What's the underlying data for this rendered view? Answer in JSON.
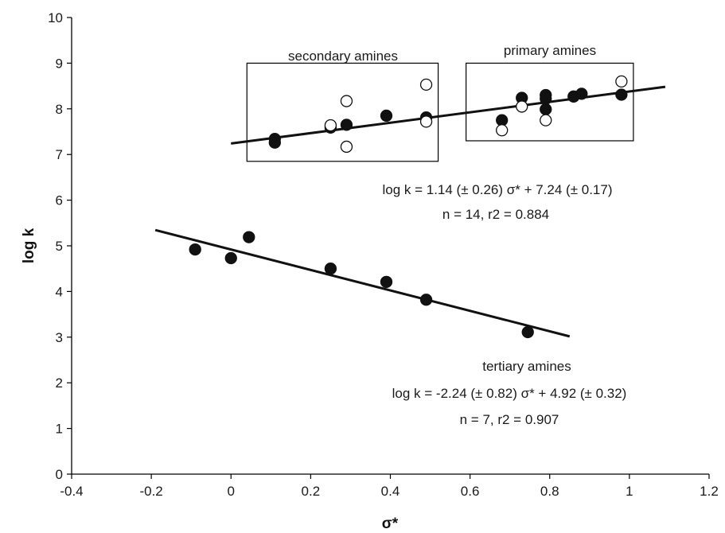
{
  "chart_data": {
    "type": "scatter",
    "xlabel": "σ*",
    "ylabel": "log k",
    "xlim": [
      -0.4,
      1.2
    ],
    "ylim": [
      0,
      10
    ],
    "xticks": [
      -0.4,
      -0.2,
      0,
      0.2,
      0.4,
      0.6,
      0.8,
      1,
      1.2
    ],
    "xtick_labels": [
      "-0.4",
      "-0.2",
      "0",
      "0.2",
      "0.4",
      "0.6",
      "0.8",
      "1",
      "1.2"
    ],
    "yticks": [
      0,
      1,
      2,
      3,
      4,
      5,
      6,
      7,
      8,
      9,
      10
    ],
    "ytick_labels": [
      "0",
      "1",
      "2",
      "3",
      "4",
      "5",
      "6",
      "7",
      "8",
      "9",
      "10"
    ],
    "grid": false,
    "series": [
      {
        "marker": "filled-circle",
        "color": "#111111",
        "points": [
          {
            "x": 0.11,
            "y": 7.34
          },
          {
            "x": 0.11,
            "y": 7.26
          },
          {
            "x": 0.25,
            "y": 7.59
          },
          {
            "x": 0.29,
            "y": 7.65
          },
          {
            "x": 0.39,
            "y": 7.85
          },
          {
            "x": 0.49,
            "y": 7.81
          },
          {
            "x": 0.73,
            "y": 8.24
          },
          {
            "x": 0.68,
            "y": 7.75
          },
          {
            "x": 0.79,
            "y": 8.3
          },
          {
            "x": 0.79,
            "y": 8.22
          },
          {
            "x": 0.79,
            "y": 7.99
          },
          {
            "x": 0.86,
            "y": 8.27
          },
          {
            "x": 0.88,
            "y": 8.33
          },
          {
            "x": 0.98,
            "y": 8.31
          }
        ]
      },
      {
        "marker": "open-circle",
        "color": "#111111",
        "points": [
          {
            "x": 0.25,
            "y": 7.64
          },
          {
            "x": 0.29,
            "y": 8.17
          },
          {
            "x": 0.29,
            "y": 7.17
          },
          {
            "x": 0.49,
            "y": 8.53
          },
          {
            "x": 0.49,
            "y": 7.72
          },
          {
            "x": 0.68,
            "y": 7.53
          },
          {
            "x": 0.73,
            "y": 8.05
          },
          {
            "x": 0.79,
            "y": 7.75
          },
          {
            "x": 0.98,
            "y": 8.6
          }
        ]
      },
      {
        "marker": "filled-circle",
        "color": "#111111",
        "points": [
          {
            "x": -0.09,
            "y": 4.92
          },
          {
            "x": 0.0,
            "y": 4.73
          },
          {
            "x": 0.045,
            "y": 5.19
          },
          {
            "x": 0.25,
            "y": 4.5
          },
          {
            "x": 0.39,
            "y": 4.21
          },
          {
            "x": 0.49,
            "y": 3.82
          },
          {
            "x": 0.745,
            "y": 3.11
          }
        ]
      }
    ],
    "fit_lines": [
      {
        "slope": 1.14,
        "intercept": 7.24,
        "x_range": [
          -0.0,
          1.09
        ]
      },
      {
        "slope": -2.24,
        "intercept": 4.92,
        "x_range": [
          -0.19,
          0.85
        ]
      }
    ],
    "boxes": [
      {
        "label": "secondary amines",
        "x_range": [
          0.04,
          0.52
        ],
        "y_range": [
          6.85,
          9.0
        ]
      },
      {
        "label": "primary amines",
        "x_range": [
          0.59,
          1.01
        ],
        "y_range": [
          7.3,
          9.0
        ]
      }
    ],
    "annotations": {
      "upper_eq": "log k = 1.14 (± 0.26) σ* + 7.24 (± 0.17)",
      "upper_stats": "n = 14, r2 = 0.884",
      "lower_title": "tertiary amines",
      "lower_eq": "log k = -2.24 (± 0.82) σ* + 4.92 (± 0.32)",
      "lower_stats": "n = 7, r2 = 0.907"
    }
  }
}
